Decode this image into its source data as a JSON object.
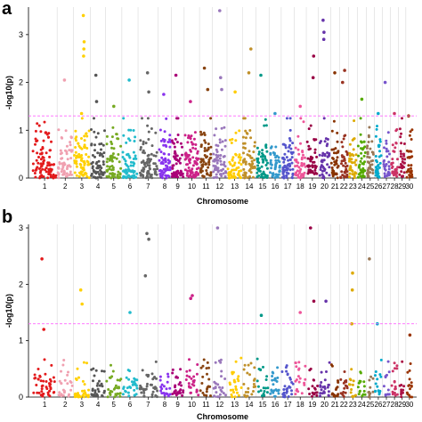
{
  "panels": [
    {
      "letter": "a"
    },
    {
      "letter": "b"
    }
  ],
  "colors": {
    "threshold": "#ff66ff",
    "chromosomes": [
      "#e31a1c",
      "#f0a0b0",
      "#ffd000",
      "#555555",
      "#77aa22",
      "#22bbcc",
      "#666666",
      "#8833ee",
      "#aa0077",
      "#cc2288",
      "#884411",
      "#9977bb",
      "#ffcc00",
      "#c0902a",
      "#009988",
      "#3399cc",
      "#5555cc",
      "#ee5599",
      "#990044",
      "#6633aa",
      "#883300",
      "#993322",
      "#ddaa00",
      "#55aa00",
      "#997755",
      "#00aacc",
      "#7755cc",
      "#cc3366",
      "#aa1144",
      "#993300"
    ]
  },
  "chart_data": [
    {
      "type": "scatter",
      "subtype": "manhattan",
      "xlabel": "Chromosome",
      "ylabel": "-log10(p)",
      "categories": [
        "1",
        "2",
        "3",
        "4",
        "5",
        "6",
        "7",
        "8",
        "9",
        "10",
        "11",
        "12",
        "13",
        "14",
        "15",
        "16",
        "17",
        "18",
        "19",
        "20",
        "21",
        "22",
        "23",
        "24",
        "25",
        "26",
        "27",
        "28",
        "29",
        "30"
      ],
      "ylim": [
        0,
        3.5
      ],
      "yticks": [
        "0",
        "1",
        "2",
        "3"
      ],
      "threshold": 1.3,
      "grid": "vertical lines between chromosomes",
      "notable_points": [
        {
          "chromosome": "1",
          "y": 0.95
        },
        {
          "chromosome": "2",
          "y": 2.05
        },
        {
          "chromosome": "3",
          "y": 3.4
        },
        {
          "chromosome": "3",
          "y": 2.85
        },
        {
          "chromosome": "3",
          "y": 2.7
        },
        {
          "chromosome": "3",
          "y": 2.55
        },
        {
          "chromosome": "3",
          "y": 1.35
        },
        {
          "chromosome": "4",
          "y": 2.15
        },
        {
          "chromosome": "4",
          "y": 1.6
        },
        {
          "chromosome": "5",
          "y": 1.5
        },
        {
          "chromosome": "6",
          "y": 2.05
        },
        {
          "chromosome": "7",
          "y": 2.2
        },
        {
          "chromosome": "7",
          "y": 1.8
        },
        {
          "chromosome": "8",
          "y": 1.75
        },
        {
          "chromosome": "9",
          "y": 2.15
        },
        {
          "chromosome": "10",
          "y": 1.6
        },
        {
          "chromosome": "11",
          "y": 2.3
        },
        {
          "chromosome": "11",
          "y": 1.85
        },
        {
          "chromosome": "12",
          "y": 3.5
        },
        {
          "chromosome": "12",
          "y": 2.1
        },
        {
          "chromosome": "12",
          "y": 1.85
        },
        {
          "chromosome": "13",
          "y": 1.8
        },
        {
          "chromosome": "14",
          "y": 2.7
        },
        {
          "chromosome": "14",
          "y": 2.2
        },
        {
          "chromosome": "15",
          "y": 2.15
        },
        {
          "chromosome": "16",
          "y": 1.35
        },
        {
          "chromosome": "18",
          "y": 1.5
        },
        {
          "chromosome": "19",
          "y": 2.55
        },
        {
          "chromosome": "19",
          "y": 2.1
        },
        {
          "chromosome": "20",
          "y": 3.3
        },
        {
          "chromosome": "20",
          "y": 3.05
        },
        {
          "chromosome": "20",
          "y": 2.9
        },
        {
          "chromosome": "21",
          "y": 2.2
        },
        {
          "chromosome": "22",
          "y": 2.25
        },
        {
          "chromosome": "22",
          "y": 2.0
        },
        {
          "chromosome": "24",
          "y": 1.65
        },
        {
          "chromosome": "26",
          "y": 1.35
        },
        {
          "chromosome": "27",
          "y": 2.0
        },
        {
          "chromosome": "28",
          "y": 1.35
        },
        {
          "chromosome": "30",
          "y": 1.3
        }
      ]
    },
    {
      "type": "scatter",
      "subtype": "manhattan",
      "xlabel": "Chromosome",
      "ylabel": "-log10(p)",
      "categories": [
        "1",
        "2",
        "3",
        "4",
        "5",
        "6",
        "7",
        "8",
        "9",
        "10",
        "11",
        "12",
        "13",
        "14",
        "15",
        "16",
        "17",
        "18",
        "19",
        "20",
        "21",
        "22",
        "23",
        "24",
        "25",
        "26",
        "27",
        "28",
        "29",
        "30"
      ],
      "ylim": [
        0,
        3.0
      ],
      "yticks": [
        "0",
        "1",
        "2",
        "3"
      ],
      "threshold": 1.3,
      "grid": "vertical lines between chromosomes",
      "notable_points": [
        {
          "chromosome": "1",
          "y": 2.45
        },
        {
          "chromosome": "1",
          "y": 1.2
        },
        {
          "chromosome": "3",
          "y": 1.9
        },
        {
          "chromosome": "3",
          "y": 1.65
        },
        {
          "chromosome": "7",
          "y": 2.9
        },
        {
          "chromosome": "7",
          "y": 2.8
        },
        {
          "chromosome": "7",
          "y": 2.15
        },
        {
          "chromosome": "6",
          "y": 1.5
        },
        {
          "chromosome": "10",
          "y": 1.8
        },
        {
          "chromosome": "10",
          "y": 1.75
        },
        {
          "chromosome": "12",
          "y": 3.0
        },
        {
          "chromosome": "15",
          "y": 1.45
        },
        {
          "chromosome": "18",
          "y": 1.5
        },
        {
          "chromosome": "19",
          "y": 3.0
        },
        {
          "chromosome": "19",
          "y": 1.7
        },
        {
          "chromosome": "20",
          "y": 1.7
        },
        {
          "chromosome": "23",
          "y": 2.2
        },
        {
          "chromosome": "23",
          "y": 1.9
        },
        {
          "chromosome": "23",
          "y": 1.3
        },
        {
          "chromosome": "25",
          "y": 2.45
        },
        {
          "chromosome": "26",
          "y": 1.3
        },
        {
          "chromosome": "30",
          "y": 1.1
        }
      ]
    }
  ]
}
